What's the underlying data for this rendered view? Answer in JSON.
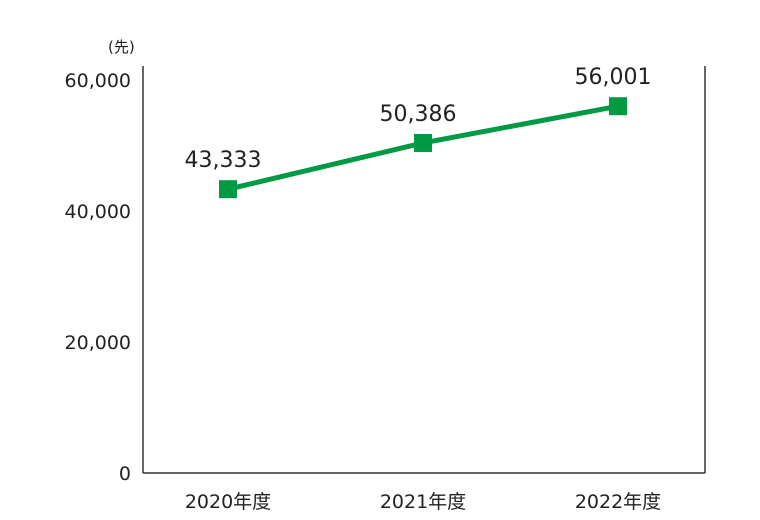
{
  "chart_data": {
    "type": "line",
    "title": "",
    "xlabel": "",
    "ylabel": "",
    "y_unit": "(先)",
    "categories": [
      "2020年度",
      "2021年度",
      "2022年度"
    ],
    "series": [
      {
        "values": [
          43333,
          50386,
          56001
        ],
        "labels": [
          "43,333",
          "50,386",
          "56,001"
        ],
        "color": "#009944",
        "marker": "square"
      }
    ],
    "ylim": [
      0,
      60000
    ],
    "yticks": [
      0,
      20000,
      40000,
      60000
    ],
    "ytick_labels": [
      "0",
      "20,000",
      "40,000",
      "60,000"
    ],
    "grid": false,
    "legend": "none"
  }
}
